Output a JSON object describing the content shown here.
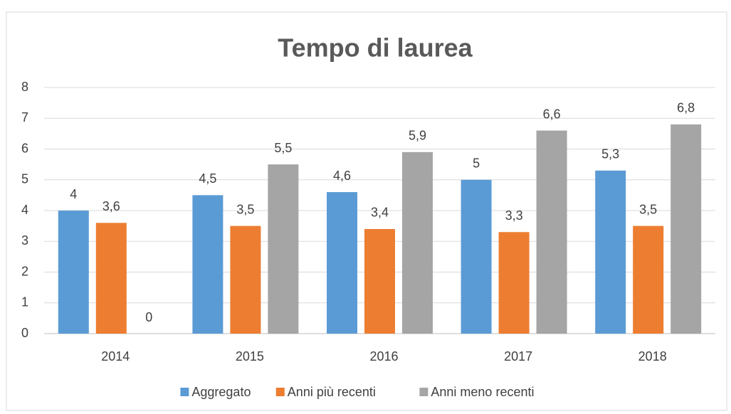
{
  "chart_data": {
    "type": "bar",
    "title": "Tempo di laurea",
    "categories": [
      "2014",
      "2015",
      "2016",
      "2017",
      "2018"
    ],
    "series": [
      {
        "name": "Aggregato",
        "color": "#5b9bd5",
        "values": [
          4,
          4.5,
          4.6,
          5,
          5.3
        ],
        "value_labels": [
          "4",
          "4,5",
          "4,6",
          "5",
          "5,3"
        ]
      },
      {
        "name": "Anni più recenti",
        "color": "#ed7d31",
        "values": [
          3.6,
          3.5,
          3.4,
          3.3,
          3.5
        ],
        "value_labels": [
          "3,6",
          "3,5",
          "3,4",
          "3,3",
          "3,5"
        ]
      },
      {
        "name": "Anni meno recenti",
        "color": "#a5a5a5",
        "values": [
          0,
          5.5,
          5.9,
          6.6,
          6.8
        ],
        "value_labels": [
          "0",
          "5,5",
          "5,9",
          "6,6",
          "6,8"
        ]
      }
    ],
    "ylim": [
      0,
      8
    ],
    "yticks": [
      0,
      1,
      2,
      3,
      4,
      5,
      6,
      7,
      8
    ],
    "grid": true,
    "legend": "bottom"
  }
}
